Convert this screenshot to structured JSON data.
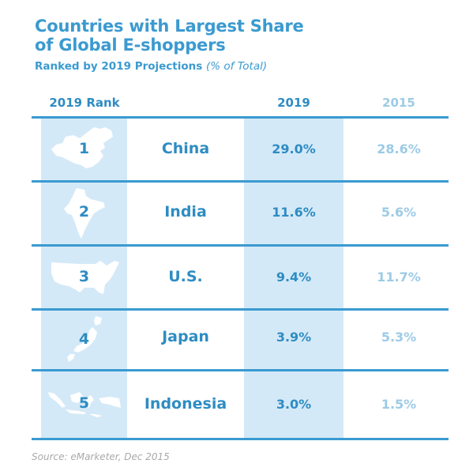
{
  "title_line1": "Countries with Largest Share",
  "title_line2": "of Global E-shoppers",
  "subtitle_main": "Ranked by 2019 Projections",
  "subtitle_unit": "(% of Total)",
  "columns": {
    "rank": "2019 Rank",
    "y2019": "2019",
    "y2015": "2015"
  },
  "colors": {
    "primary": "#2e8cc3",
    "light": "#9ccbe6",
    "band": "#d4e9f7",
    "rule": "#3a9ad1"
  },
  "chart_data": {
    "type": "table",
    "columns": [
      "2019 Rank",
      "2019",
      "2015"
    ],
    "rows": [
      {
        "rank": "1",
        "country": "China",
        "map_icon": "china-map-icon",
        "v2019": "29.0%",
        "v2015": "28.6%"
      },
      {
        "rank": "2",
        "country": "India",
        "map_icon": "india-map-icon",
        "v2019": "11.6%",
        "v2015": "5.6%"
      },
      {
        "rank": "3",
        "country": "U.S.",
        "map_icon": "us-map-icon",
        "v2019": "9.4%",
        "v2015": "11.7%"
      },
      {
        "rank": "4",
        "country": "Japan",
        "map_icon": "japan-map-icon",
        "v2019": "3.9%",
        "v2015": "5.3%"
      },
      {
        "rank": "5",
        "country": "Indonesia",
        "map_icon": "indonesia-map-icon",
        "v2019": "3.0%",
        "v2015": "1.5%"
      }
    ]
  },
  "source": "Source: eMarketer, Dec 2015"
}
